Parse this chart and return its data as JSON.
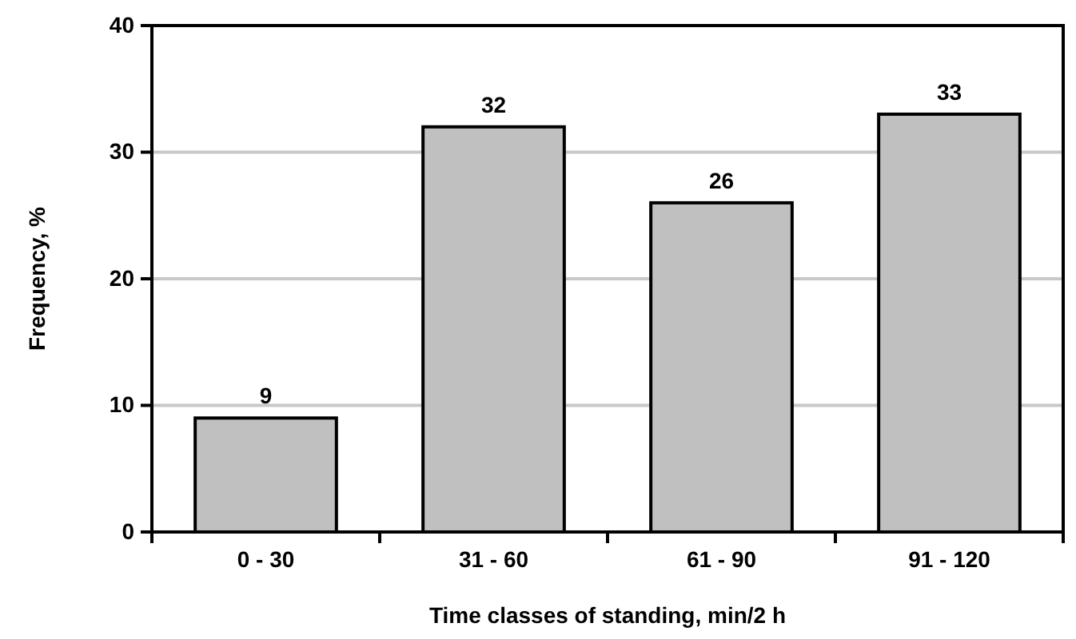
{
  "chart_data": {
    "type": "bar",
    "xlabel": "Time classes of standing, min/2 h",
    "ylabel": "Frequency, %",
    "categories": [
      "0 - 30",
      "31 - 60",
      "61 - 90",
      "91 - 120"
    ],
    "values": [
      9,
      32,
      26,
      33
    ],
    "color": "#c0c0c0",
    "ylim": [
      0,
      40
    ],
    "yticks": [
      0,
      10,
      20,
      30,
      40
    ],
    "grid": "y",
    "data_labels": true
  }
}
